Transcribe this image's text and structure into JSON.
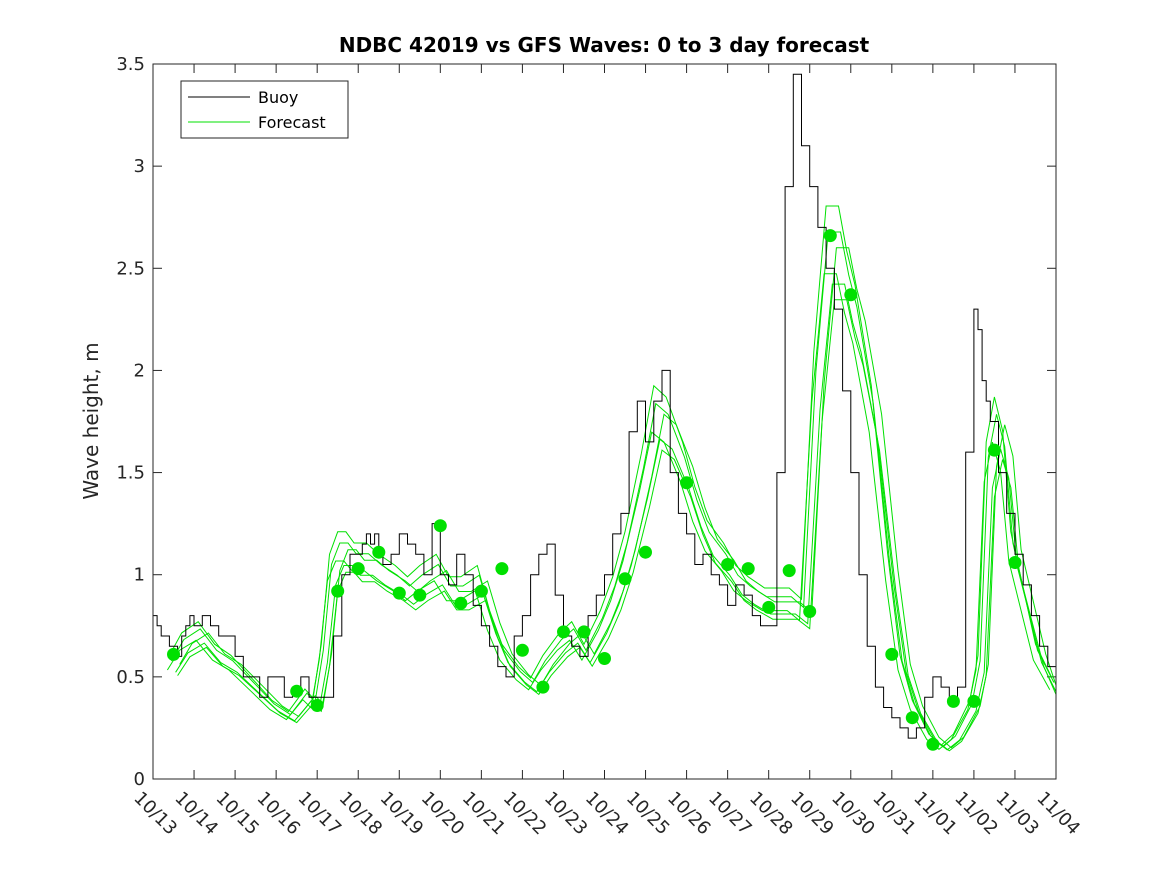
{
  "chart_data": {
    "type": "line",
    "title": "NDBC 42019 vs GFS Waves: 0 to 3 day forecast",
    "xlabel": "",
    "ylabel": "Wave height, m",
    "xlim": [
      0,
      22
    ],
    "ylim": [
      0,
      3.5
    ],
    "yticks": [
      0,
      0.5,
      1,
      1.5,
      2,
      2.5,
      3,
      3.5
    ],
    "ytick_labels": [
      "0",
      "0.5",
      "1",
      "1.5",
      "2",
      "2.5",
      "3",
      "3.5"
    ],
    "xtick_labels": [
      "10/13",
      "10/14",
      "10/15",
      "10/16",
      "10/17",
      "10/18",
      "10/19",
      "10/20",
      "10/21",
      "10/22",
      "10/23",
      "10/24",
      "10/25",
      "10/26",
      "10/27",
      "10/28",
      "10/29",
      "10/30",
      "10/31",
      "11/01",
      "11/02",
      "11/03",
      "11/04"
    ],
    "legend": {
      "position": "top-left",
      "entries": [
        "Buoy",
        "Forecast"
      ]
    },
    "colors": {
      "buoy": "#000000",
      "forecast": "#00e000",
      "marker": "#00e000"
    },
    "series": [
      {
        "name": "Buoy",
        "x": [
          0,
          0.1,
          0.2,
          0.3,
          0.4,
          0.5,
          0.6,
          0.7,
          0.8,
          0.9,
          1.0,
          1.2,
          1.4,
          1.6,
          1.8,
          2.0,
          2.2,
          2.4,
          2.6,
          2.8,
          3.0,
          3.2,
          3.4,
          3.6,
          3.8,
          4.0,
          4.2,
          4.4,
          4.6,
          4.8,
          5.0,
          5.1,
          5.2,
          5.3,
          5.4,
          5.5,
          5.6,
          5.8,
          6.0,
          6.2,
          6.4,
          6.6,
          6.8,
          7.0,
          7.2,
          7.4,
          7.6,
          7.8,
          8.0,
          8.2,
          8.4,
          8.6,
          8.8,
          9.0,
          9.2,
          9.4,
          9.6,
          9.8,
          10.0,
          10.2,
          10.4,
          10.6,
          10.8,
          11.0,
          11.2,
          11.4,
          11.6,
          11.8,
          12.0,
          12.2,
          12.4,
          12.6,
          12.8,
          13.0,
          13.2,
          13.4,
          13.6,
          13.8,
          14.0,
          14.2,
          14.4,
          14.6,
          14.8,
          15.0,
          15.2,
          15.4,
          15.6,
          15.8,
          16.0,
          16.2,
          16.4,
          16.6,
          16.8,
          17.0,
          17.2,
          17.4,
          17.6,
          17.8,
          18.0,
          18.2,
          18.4,
          18.6,
          18.8,
          19.0,
          19.2,
          19.4,
          19.6,
          19.8,
          20.0,
          20.1,
          20.2,
          20.3,
          20.4,
          20.6,
          20.8,
          21.0,
          21.2,
          21.4,
          21.6,
          21.8,
          22.0
        ],
        "y": [
          0.8,
          0.75,
          0.7,
          0.7,
          0.65,
          0.65,
          0.6,
          0.7,
          0.75,
          0.8,
          0.75,
          0.8,
          0.75,
          0.7,
          0.7,
          0.6,
          0.5,
          0.5,
          0.4,
          0.5,
          0.5,
          0.4,
          0.45,
          0.5,
          0.4,
          0.4,
          0.4,
          0.7,
          1.0,
          1.1,
          1.1,
          1.15,
          1.2,
          1.15,
          1.2,
          1.1,
          1.05,
          1.1,
          1.2,
          1.15,
          1.1,
          1.0,
          1.25,
          1.0,
          0.95,
          1.1,
          1.0,
          0.85,
          0.75,
          0.65,
          0.55,
          0.5,
          0.7,
          0.8,
          1.0,
          1.1,
          1.15,
          0.9,
          0.7,
          0.65,
          0.6,
          0.8,
          0.9,
          1.0,
          1.2,
          1.3,
          1.7,
          1.85,
          1.65,
          1.85,
          2.0,
          1.5,
          1.3,
          1.2,
          1.05,
          1.1,
          1.0,
          0.95,
          0.85,
          0.95,
          0.9,
          0.8,
          0.75,
          0.75,
          1.5,
          2.9,
          3.45,
          3.1,
          2.9,
          2.7,
          2.5,
          2.3,
          1.9,
          1.5,
          1.0,
          0.65,
          0.45,
          0.35,
          0.3,
          0.25,
          0.2,
          0.25,
          0.4,
          0.5,
          0.45,
          0.4,
          0.45,
          1.6,
          2.3,
          2.2,
          1.95,
          1.85,
          1.75,
          1.5,
          1.3,
          1.1,
          0.95,
          0.8,
          0.65,
          0.55,
          0.45
        ]
      },
      {
        "name": "Forecast",
        "x": [
          0.5,
          0.8,
          1.2,
          1.6,
          2.0,
          2.5,
          3.0,
          3.4,
          3.8,
          4.0,
          4.2,
          4.4,
          4.6,
          4.8,
          5.0,
          5.3,
          5.6,
          6.0,
          6.3,
          6.6,
          7.0,
          7.3,
          7.6,
          8.0,
          8.3,
          8.6,
          9.0,
          9.3,
          9.6,
          10.0,
          10.3,
          10.6,
          11.0,
          11.3,
          11.6,
          12.0,
          12.3,
          12.6,
          13.0,
          13.3,
          13.6,
          14.0,
          14.3,
          14.6,
          15.0,
          15.3,
          15.6,
          15.9,
          16.2,
          16.5,
          16.8,
          17.0,
          17.2,
          17.6,
          18.0,
          18.3,
          18.6,
          19.0,
          19.3,
          19.6,
          20.0,
          20.2,
          20.4,
          20.6,
          20.8,
          21.0,
          21.3,
          21.6,
          22.0
        ],
        "y": [
          0.55,
          0.65,
          0.7,
          0.6,
          0.55,
          0.45,
          0.35,
          0.3,
          0.4,
          0.36,
          0.6,
          1.0,
          1.1,
          1.1,
          1.05,
          1.05,
          1.0,
          0.95,
          0.9,
          0.95,
          1.0,
          0.9,
          0.9,
          0.95,
          0.75,
          0.6,
          0.5,
          0.45,
          0.55,
          0.65,
          0.7,
          0.6,
          0.75,
          0.9,
          1.1,
          1.45,
          1.75,
          1.7,
          1.5,
          1.3,
          1.15,
          1.05,
          0.95,
          0.9,
          0.85,
          0.85,
          0.85,
          0.8,
          1.9,
          2.55,
          2.55,
          2.35,
          2.2,
          1.75,
          1.0,
          0.55,
          0.35,
          0.2,
          0.15,
          0.2,
          0.35,
          0.55,
          1.5,
          1.7,
          1.55,
          1.1,
          0.85,
          0.6,
          0.45
        ]
      }
    ],
    "forecast_variants": [
      {
        "offset": 0.05,
        "dx": -0.1
      },
      {
        "offset": -0.05,
        "dx": 0.1
      },
      {
        "offset": 0.1,
        "dx": -0.2
      },
      {
        "offset": -0.08,
        "dx": 0.2
      },
      {
        "offset": 0.02,
        "dx": 0.3
      },
      {
        "offset": -0.03,
        "dx": -0.3
      }
    ],
    "markers": {
      "name": "Forecast markers",
      "x": [
        0.5,
        3.5,
        4.0,
        4.5,
        5.0,
        5.5,
        6.0,
        6.5,
        7.0,
        7.5,
        8.0,
        8.5,
        9.0,
        9.5,
        10.0,
        10.5,
        11.0,
        11.5,
        12.0,
        13.0,
        14.0,
        14.5,
        15.0,
        15.5,
        16.0,
        16.5,
        17.0,
        18.0,
        18.5,
        19.0,
        19.5,
        20.0,
        20.5,
        21.0
      ],
      "y": [
        0.61,
        0.43,
        0.36,
        0.92,
        1.03,
        1.11,
        0.91,
        0.9,
        1.24,
        0.86,
        0.92,
        1.03,
        0.63,
        0.45,
        0.72,
        0.72,
        0.59,
        0.98,
        1.11,
        1.45,
        1.05,
        1.03,
        0.84,
        1.02,
        0.82,
        2.66,
        2.37,
        0.61,
        0.3,
        0.17,
        0.38,
        0.38,
        1.61,
        1.06
      ]
    }
  }
}
